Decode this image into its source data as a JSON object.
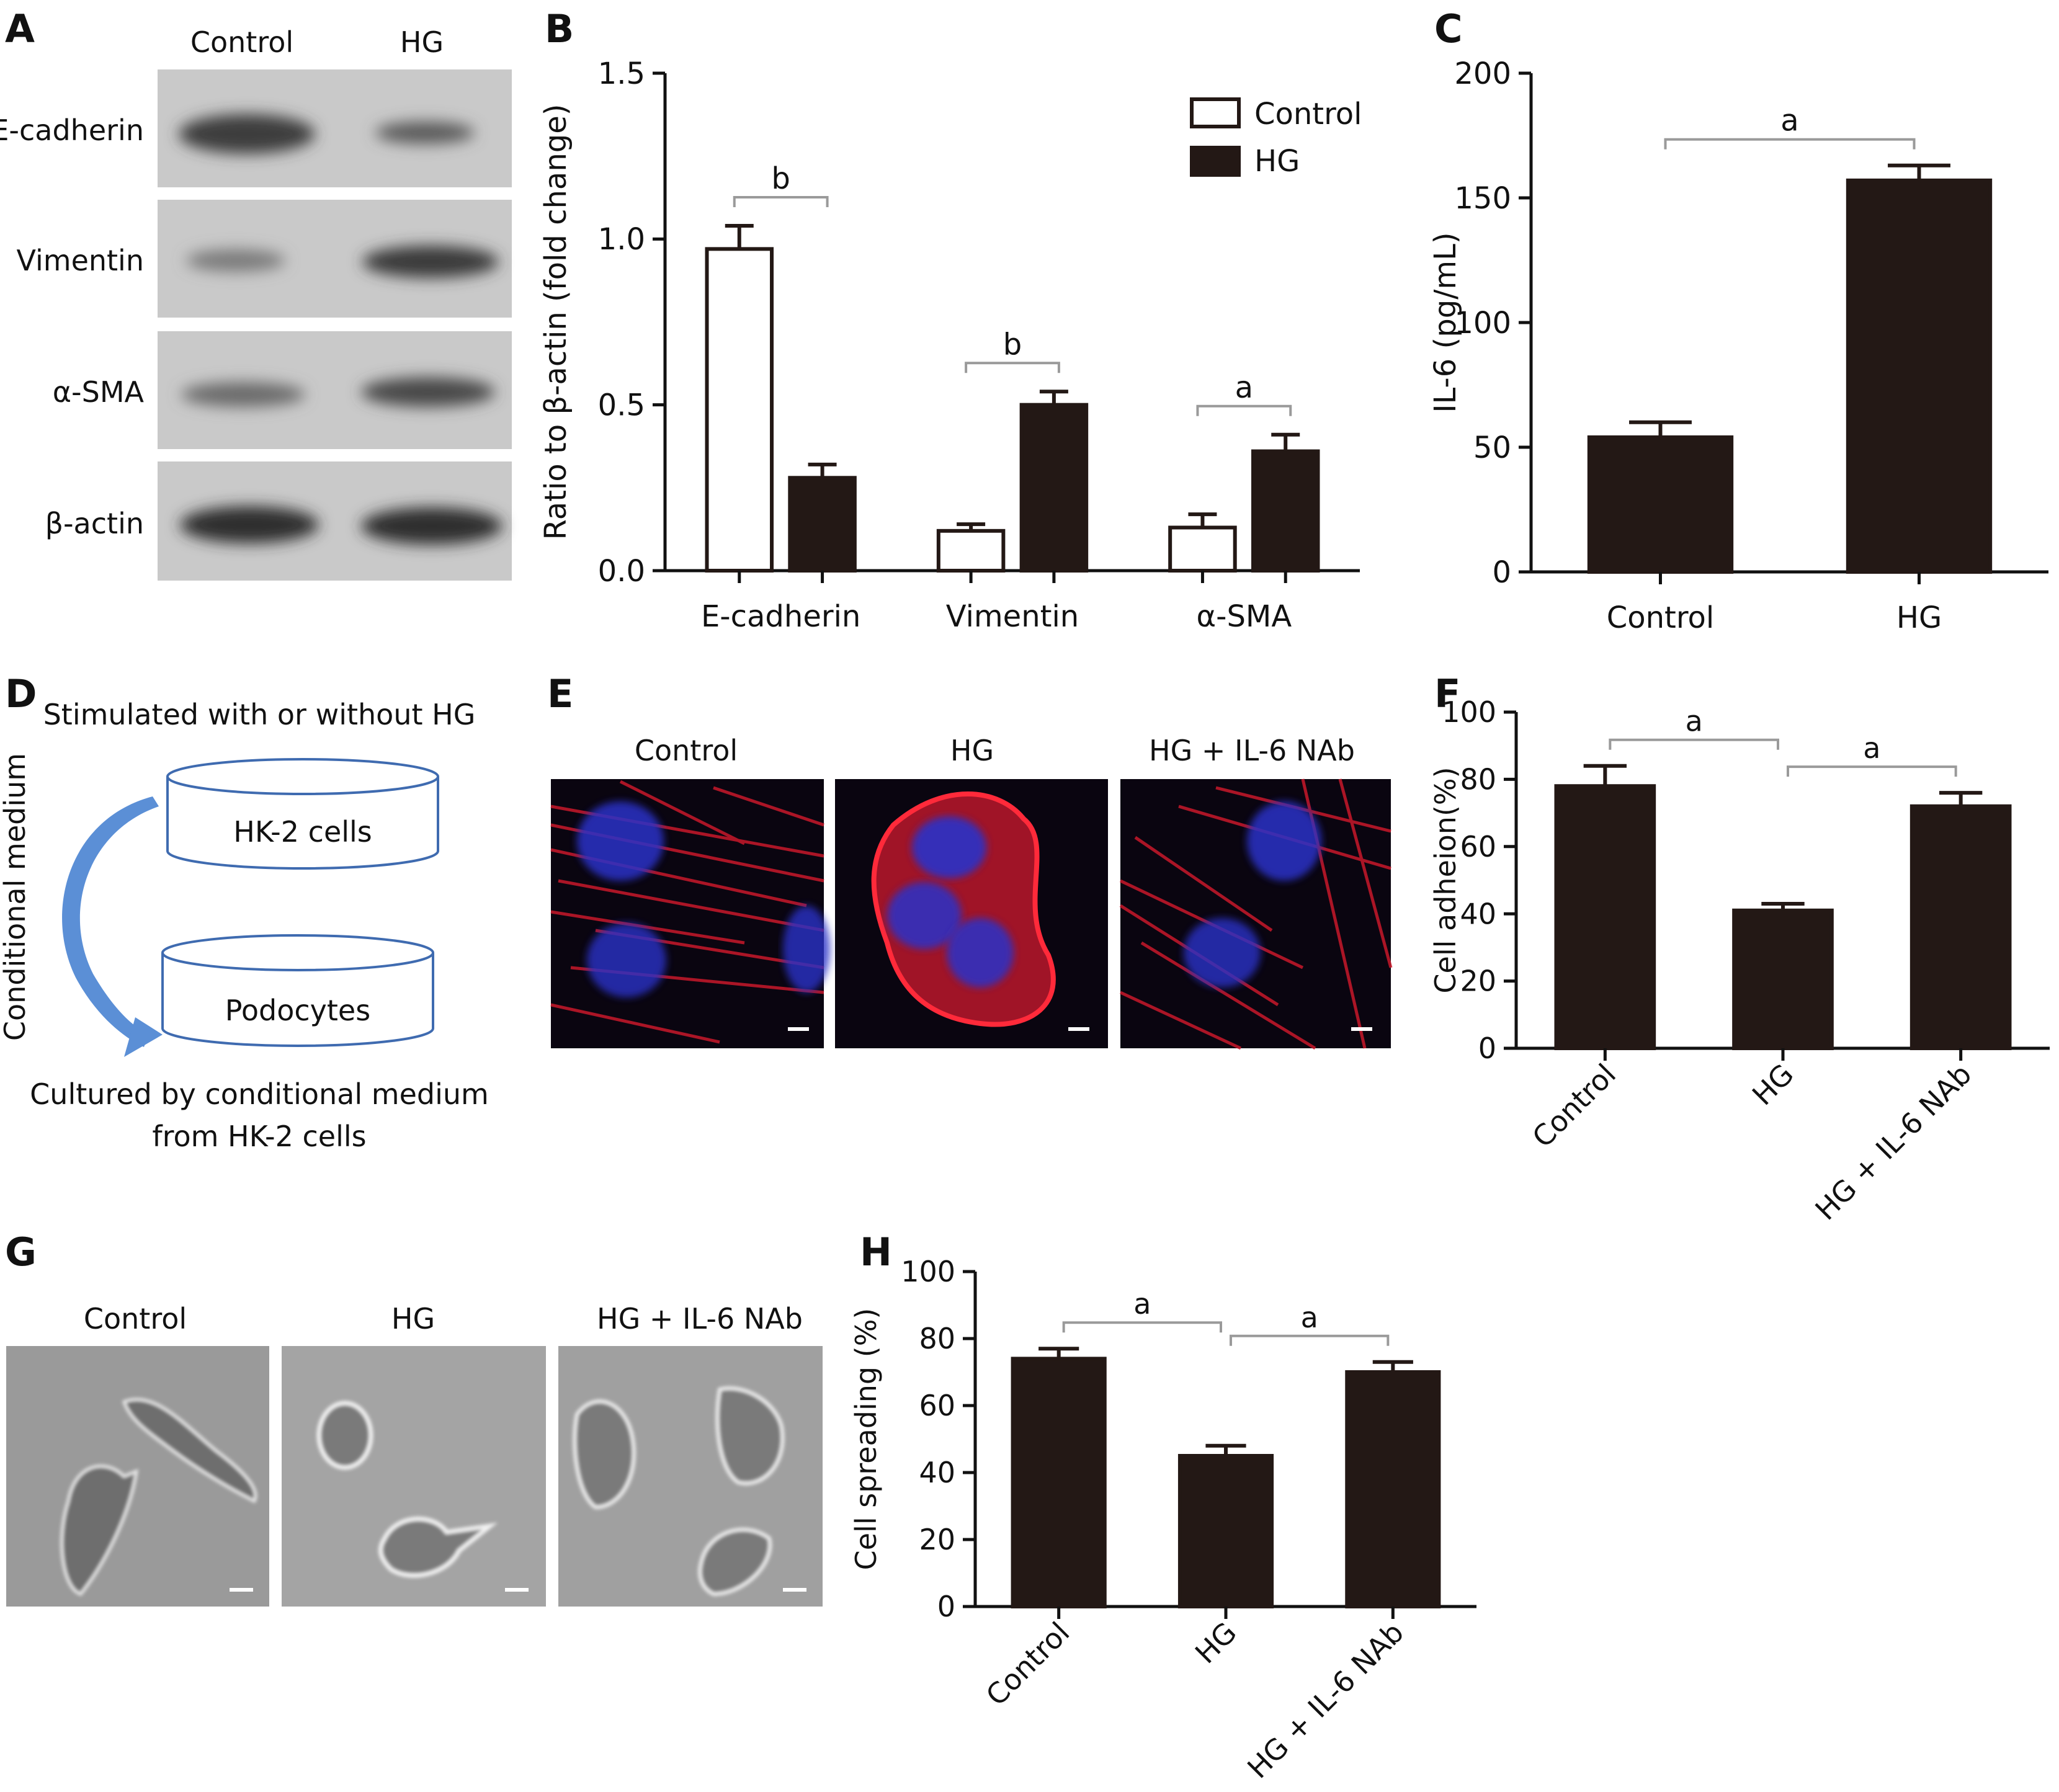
{
  "panels": {
    "A": {
      "letter": "A",
      "lane_labels": [
        "Control",
        "HG"
      ],
      "row_labels": [
        "E-cadherin",
        "Vimentin",
        "α-SMA",
        "β-actin"
      ]
    },
    "D": {
      "letter": "D",
      "top_text": "Stimulated with or without HG",
      "side_text": "Conditional medium",
      "dish1": "HK-2 cells",
      "dish2": "Podocytes",
      "bottom_line1": "Cultured by conditional medium",
      "bottom_line2": "from HK-2 cells"
    },
    "E": {
      "letter": "E",
      "labels": [
        "Control",
        "HG",
        "HG + IL-6 NAb"
      ]
    },
    "G": {
      "letter": "G",
      "labels": [
        "Control",
        "HG",
        "HG + IL-6 NAb"
      ]
    }
  },
  "colors": {
    "bar_dark": "#231815",
    "bar_open": "#ffffff",
    "axis": "#111111",
    "bracket": "#9a9a9a",
    "fluor_red": "#d81c2a",
    "fluor_blue": "#2a33c8"
  },
  "chart_data": [
    {
      "id": "B",
      "letter": "B",
      "type": "bar",
      "categories": [
        "E-cadherin",
        "Vimentin",
        "α-SMA"
      ],
      "series": [
        {
          "name": "Control",
          "values": [
            0.97,
            0.12,
            0.13
          ],
          "errors": [
            0.07,
            0.02,
            0.04
          ]
        },
        {
          "name": "HG",
          "values": [
            0.28,
            0.5,
            0.36
          ],
          "errors": [
            0.04,
            0.04,
            0.05
          ]
        }
      ],
      "ylabel": "Ratio to β-actin (fold change)",
      "ylim": [
        0,
        1.5
      ],
      "yticks": [
        "0.0",
        "0.5",
        "1.0",
        "1.5"
      ],
      "significance": [
        "b",
        "b",
        "a"
      ],
      "legend": "top-right"
    },
    {
      "id": "C",
      "letter": "C",
      "type": "bar",
      "categories": [
        "Control",
        "HG"
      ],
      "values": [
        54,
        157
      ],
      "errors": [
        6,
        6
      ],
      "ylabel": "IL-6 (pg/mL)",
      "ylim": [
        0,
        200
      ],
      "yticks": [
        "0",
        "50",
        "100",
        "150",
        "200"
      ],
      "significance": [
        "a"
      ]
    },
    {
      "id": "F",
      "letter": "F",
      "type": "bar",
      "categories": [
        "Control",
        "HG",
        "HG + IL-6 NAb"
      ],
      "values": [
        78,
        41,
        72
      ],
      "errors": [
        6,
        2,
        4
      ],
      "ylabel": "Cell adheion(%)",
      "ylim": [
        0,
        100
      ],
      "yticks": [
        "0",
        "20",
        "40",
        "60",
        "80",
        "100"
      ],
      "significance": [
        "a",
        "a"
      ]
    },
    {
      "id": "H",
      "letter": "H",
      "type": "bar",
      "categories": [
        "Control",
        "HG",
        "HG + IL-6 NAb"
      ],
      "values": [
        74,
        45,
        70
      ],
      "errors": [
        3,
        3,
        3
      ],
      "ylabel": "Cell spreading (%)",
      "ylim": [
        0,
        100
      ],
      "yticks": [
        "0",
        "20",
        "40",
        "60",
        "80",
        "100"
      ],
      "significance": [
        "a",
        "a"
      ]
    }
  ]
}
